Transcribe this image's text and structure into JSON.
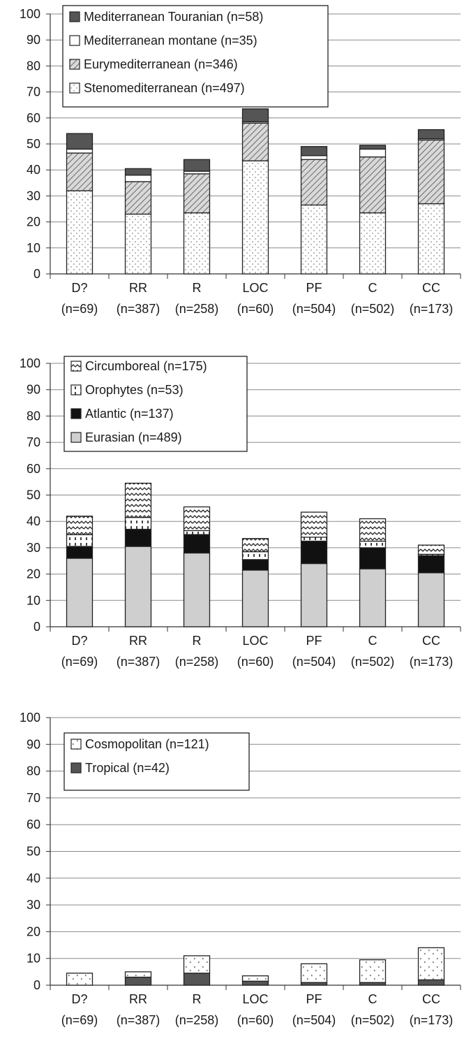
{
  "chart_data": [
    {
      "type": "bar",
      "stacked": true,
      "categories": [
        "D?",
        "RR",
        "R",
        "LOC",
        "PF",
        "C",
        "CC"
      ],
      "category_counts": [
        "(n=69)",
        "(n=387)",
        "(n=258)",
        "(n=60)",
        "(n=504)",
        "(n=502)",
        "(n=173)"
      ],
      "ylim": [
        0,
        100
      ],
      "yticks": [
        0,
        10,
        20,
        30,
        40,
        50,
        60,
        70,
        80,
        90,
        100
      ],
      "grid": true,
      "legend_position": "top-left",
      "series": [
        {
          "name": "Stenomediterranean (n=497)",
          "values": [
            32,
            23,
            23.5,
            43.5,
            26.5,
            23.5,
            27
          ],
          "fill": "dots",
          "color": "#ffffff"
        },
        {
          "name": "Eurymediterranean (n=346)",
          "values": [
            14.5,
            12.5,
            15,
            14.5,
            17.5,
            21.5,
            24.5
          ],
          "fill": "diagonal-hatch",
          "color": "#bdbdbd"
        },
        {
          "name": "Mediterranean montane (n=35)",
          "values": [
            1.5,
            2.5,
            1,
            0.5,
            1.5,
            3,
            0.5
          ],
          "fill": "plain",
          "color": "#ffffff"
        },
        {
          "name": "Mediterranean Touranian  (n=58)",
          "values": [
            6,
            2.5,
            4.5,
            5,
            3.5,
            1.5,
            3.5
          ],
          "fill": "solid",
          "color": "#555555"
        }
      ]
    },
    {
      "type": "bar",
      "stacked": true,
      "categories": [
        "D?",
        "RR",
        "R",
        "LOC",
        "PF",
        "C",
        "CC"
      ],
      "category_counts": [
        "(n=69)",
        "(n=387)",
        "(n=258)",
        "(n=60)",
        "(n=504)",
        "(n=502)",
        "(n=173)"
      ],
      "ylim": [
        0,
        100
      ],
      "yticks": [
        0,
        10,
        20,
        30,
        40,
        50,
        60,
        70,
        80,
        90,
        100
      ],
      "grid": true,
      "legend_position": "top-left",
      "series": [
        {
          "name": "Eurasian (n=489)",
          "values": [
            26,
            30.5,
            28,
            21.5,
            24,
            22,
            20.5
          ],
          "fill": "solid",
          "color": "#cfcfcf"
        },
        {
          "name": "Atlantic (n=137)",
          "values": [
            4.5,
            6.5,
            7,
            4,
            8.5,
            8,
            6.5
          ],
          "fill": "solid",
          "color": "#111111"
        },
        {
          "name": "Orophytes (n=53)",
          "values": [
            4.5,
            4.5,
            1.5,
            3,
            1.5,
            2.5,
            0.5
          ],
          "fill": "vertical-dash",
          "color": "#ffffff"
        },
        {
          "name": "Circumboreal (n=175)",
          "values": [
            7,
            13,
            9,
            5,
            9.5,
            8.5,
            3.5
          ],
          "fill": "zigzag",
          "color": "#ffffff"
        }
      ]
    },
    {
      "type": "bar",
      "stacked": true,
      "categories": [
        "D?",
        "RR",
        "R",
        "LOC",
        "PF",
        "C",
        "CC"
      ],
      "category_counts": [
        "(n=69)",
        "(n=387)",
        "(n=258)",
        "(n=60)",
        "(n=504)",
        "(n=502)",
        "(n=173)"
      ],
      "ylim": [
        0,
        100
      ],
      "yticks": [
        0,
        10,
        20,
        30,
        40,
        50,
        60,
        70,
        80,
        90,
        100
      ],
      "grid": true,
      "legend_position": "top-left",
      "series": [
        {
          "name": "Tropical (n=42)",
          "values": [
            0,
            3,
            4.5,
            1.5,
            1,
            1,
            2
          ],
          "fill": "solid",
          "color": "#555555"
        },
        {
          "name": "Cosmopolitan (n=121)",
          "values": [
            4.5,
            2,
            6.5,
            2,
            7,
            8.5,
            12
          ],
          "fill": "sparse-marks",
          "color": "#ffffff"
        }
      ]
    }
  ]
}
